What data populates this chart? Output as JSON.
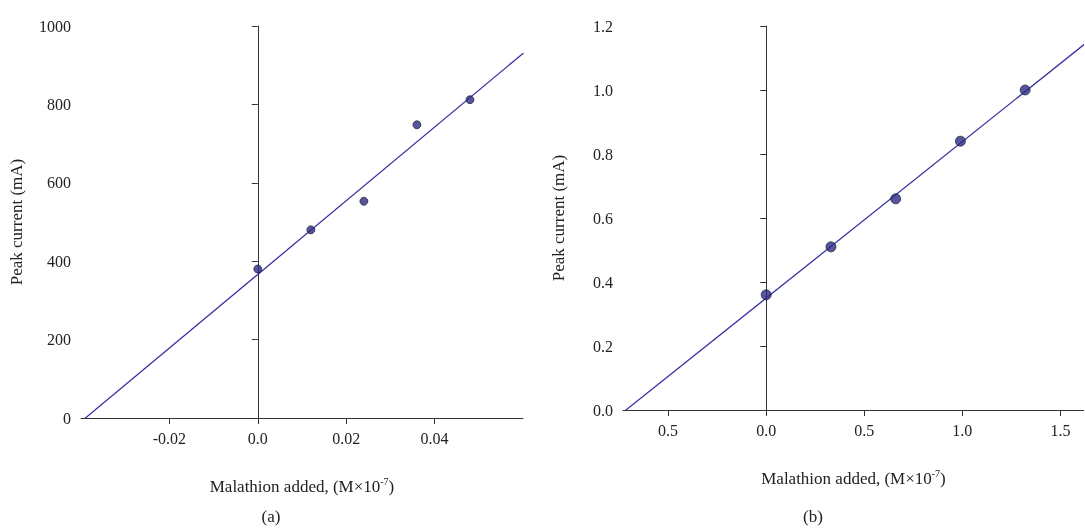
{
  "chart_data": [
    {
      "type": "scatter",
      "title": "(a)",
      "xlabel": "Malathion added, (M×10$^{-7}$)",
      "ylabel": "Peak current (mA)",
      "xlim": [
        -0.04,
        0.06
      ],
      "xticks": [
        -0.02,
        {
          "value": 0,
          "label": "0.0"
        },
        0.02,
        0.04
      ],
      "ylim": [
        0,
        1000
      ],
      "yticks": [
        0,
        200,
        400,
        600,
        800,
        1000
      ],
      "marker": "circle",
      "series": [
        {
          "type": "line",
          "marker": "none",
          "color": "#3a35a6",
          "x": [
            -0.039,
            0.06
          ],
          "values": [
            0,
            930
          ]
        },
        {
          "type": "scatter",
          "color": "#2d2a86",
          "x": [
            0,
            0.012,
            0.024,
            0.036,
            0.048
          ],
          "values": [
            380,
            480,
            553,
            748,
            812
          ]
        }
      ]
    },
    {
      "type": "scatter",
      "title": "(b)",
      "xlabel": "Malathion added, (M×10$^{-7}$)",
      "ylabel": "Peak current (mA)",
      "xlim": [
        -0.73,
        1.62
      ],
      "xticks": [
        {
          "value": -0.5,
          "label": "0.5"
        },
        {
          "value": 0,
          "label": "0.0"
        },
        0.5,
        {
          "value": 1,
          "label": "1.0"
        },
        1.5
      ],
      "ylim": [
        0,
        1.2
      ],
      "yticks": [
        {
          "value": 0,
          "label": "0.0"
        },
        0.2,
        0.4,
        0.6,
        0.8,
        {
          "value": 1,
          "label": "1.0"
        },
        1.2
      ],
      "marker": "circle",
      "series": [
        {
          "type": "line",
          "marker": "none",
          "color": "#3a35a6",
          "x": [
            -0.715,
            1.62
          ],
          "values": [
            0,
            1.142
          ]
        },
        {
          "type": "scatter",
          "color": "#2d2a86",
          "x": [
            0,
            0.33,
            0.66,
            0.99,
            1.32
          ],
          "values": [
            0.36,
            0.51,
            0.66,
            0.84,
            1.0
          ]
        }
      ]
    }
  ]
}
